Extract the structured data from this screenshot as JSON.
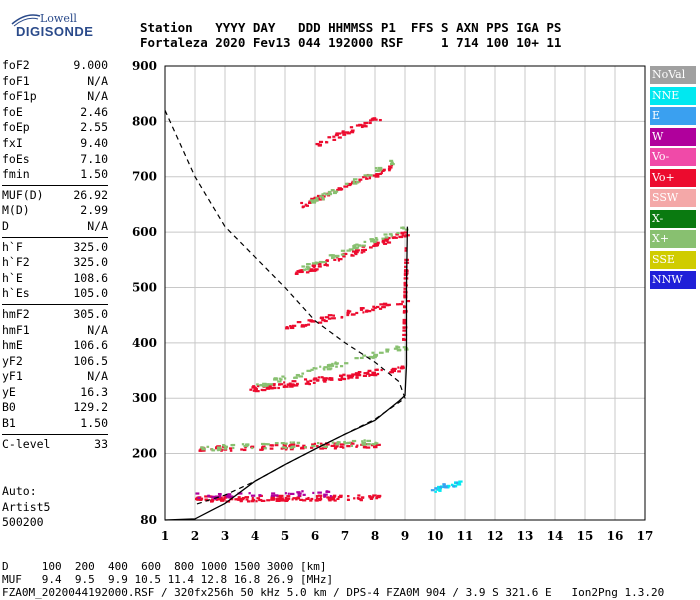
{
  "logo": {
    "line1": "Lowell",
    "line2": "DIGISONDE"
  },
  "header": {
    "labels": "Station   YYYY DAY   DDD HHMMSS P1  FFS S AXN PPS IGA PS",
    "values": "Fortaleza 2020 Fev13 044 192000 RSF     1 714 100 10+ 11"
  },
  "params": {
    "group1": [
      [
        "foF2",
        "9.000"
      ],
      [
        "foF1",
        "N/A"
      ],
      [
        "foF1p",
        "N/A"
      ],
      [
        "foE",
        "2.46"
      ],
      [
        "foEp",
        "2.55"
      ],
      [
        "fxI",
        "9.40"
      ],
      [
        "foEs",
        "7.10"
      ],
      [
        "fmin",
        "1.50"
      ]
    ],
    "group2": [
      [
        "MUF(D)",
        "26.92"
      ],
      [
        "M(D)",
        "2.99"
      ],
      [
        "D",
        "N/A"
      ]
    ],
    "group3": [
      [
        "h`F",
        "325.0"
      ],
      [
        "h`F2",
        "325.0"
      ],
      [
        "h`E",
        "108.6"
      ],
      [
        "h`Es",
        "105.0"
      ]
    ],
    "group4": [
      [
        "hmF2",
        "305.0"
      ],
      [
        "hmF1",
        "N/A"
      ],
      [
        "hmE",
        "106.6"
      ],
      [
        "yF2",
        "106.5"
      ],
      [
        "yF1",
        "N/A"
      ],
      [
        "yE",
        "16.3"
      ],
      [
        "B0",
        "129.2"
      ],
      [
        "B1",
        "1.50"
      ]
    ],
    "group5": [
      [
        "C-level",
        "33"
      ]
    ]
  },
  "auto": [
    "Auto:",
    "Artist5",
    "500200"
  ],
  "legend": [
    {
      "label": "NoVal",
      "color": "#a0a0a0"
    },
    {
      "label": "NNE",
      "color": "#00e8f0"
    },
    {
      "label": "E",
      "color": "#3aa0f0"
    },
    {
      "label": "W",
      "color": "#b0009c"
    },
    {
      "label": "Vo-",
      "color": "#f04aa8"
    },
    {
      "label": "Vo+",
      "color": "#ec0b2e"
    },
    {
      "label": "SSW",
      "color": "#f4a8a8"
    },
    {
      "label": "X-",
      "color": "#0a7a10"
    },
    {
      "label": "X+",
      "color": "#88c070"
    },
    {
      "label": "SSE",
      "color": "#d0cc00"
    },
    {
      "label": "NNW",
      "color": "#2020d8"
    }
  ],
  "footer": [
    "D     100  200  400  600  800 1000 1500 3000 [km]",
    "MUF   9.4  9.5  9.9 10.5 11.4 12.8 16.8 26.9 [MHz]",
    "FZA0M_2020044192000.RSF / 320fx256h 50 kHz 5.0 km / DPS-4 FZA0M 904 / 3.9 S 321.6 E   Ion2Png 1.3.20"
  ],
  "chart_data": {
    "type": "scatter",
    "xlim": [
      1,
      17
    ],
    "ylim": [
      80,
      900
    ],
    "xticks": [
      "1",
      "2",
      "3",
      "4",
      "5",
      "6",
      "7",
      "8",
      "9",
      "10",
      "11",
      "12",
      "13",
      "14",
      "15",
      "16",
      "17"
    ],
    "yticks": [
      "80",
      "200",
      "300",
      "400",
      "500",
      "600",
      "700",
      "800",
      "900"
    ],
    "grid": true,
    "traces": [
      {
        "x0": 2.0,
        "x1": 8.1,
        "y0": 120,
        "y1": 122,
        "color": "#ec0b2e",
        "n": 140
      },
      {
        "x0": 2.0,
        "x1": 6.5,
        "y0": 125,
        "y1": 130,
        "color": "#b0009c",
        "n": 40
      },
      {
        "x0": 2.1,
        "x1": 8.1,
        "y0": 210,
        "y1": 218,
        "color": "#ec0b2e",
        "n": 90
      },
      {
        "x0": 2.1,
        "x1": 8.1,
        "y0": 212,
        "y1": 222,
        "color": "#88c070",
        "n": 60
      },
      {
        "x0": 3.8,
        "x1": 8.9,
        "y0": 318,
        "y1": 355,
        "color": "#ec0b2e",
        "n": 120
      },
      {
        "x0": 4.0,
        "x1": 9.0,
        "y0": 325,
        "y1": 395,
        "color": "#88c070",
        "n": 70
      },
      {
        "x0": 5.0,
        "x1": 9.1,
        "y0": 430,
        "y1": 480,
        "color": "#ec0b2e",
        "n": 60
      },
      {
        "x0": 5.3,
        "x1": 9.0,
        "y0": 525,
        "y1": 600,
        "color": "#ec0b2e",
        "n": 80
      },
      {
        "x0": 5.5,
        "x1": 9.0,
        "y0": 535,
        "y1": 610,
        "color": "#88c070",
        "n": 50
      },
      {
        "x0": 5.5,
        "x1": 8.6,
        "y0": 650,
        "y1": 720,
        "color": "#ec0b2e",
        "n": 60
      },
      {
        "x0": 5.8,
        "x1": 8.6,
        "y0": 655,
        "y1": 730,
        "color": "#88c070",
        "n": 40
      },
      {
        "x0": 6.0,
        "x1": 8.2,
        "y0": 760,
        "y1": 810,
        "color": "#ec0b2e",
        "n": 40
      },
      {
        "x0": 8.9,
        "x1": 9.0,
        "y0": 400,
        "y1": 600,
        "color": "#ec0b2e",
        "n": 40
      },
      {
        "x0": 9.9,
        "x1": 10.8,
        "y0": 135,
        "y1": 150,
        "color": "#00e8f0",
        "n": 25
      },
      {
        "x0": 9.8,
        "x1": 10.7,
        "y0": 140,
        "y1": 145,
        "color": "#3aa0f0",
        "n": 10
      }
    ],
    "profile_solid": [
      [
        1,
        80
      ],
      [
        2,
        82
      ],
      [
        3,
        110
      ],
      [
        4,
        150
      ],
      [
        5,
        180
      ],
      [
        6,
        208
      ],
      [
        7,
        235
      ],
      [
        8,
        260
      ],
      [
        8.8,
        295
      ],
      [
        9.0,
        305
      ],
      [
        9.05,
        360
      ],
      [
        9.05,
        500
      ],
      [
        9.08,
        610
      ]
    ],
    "profile_dashed": [
      [
        1,
        820
      ],
      [
        2,
        700
      ],
      [
        3,
        610
      ],
      [
        4,
        555
      ],
      [
        5,
        500
      ],
      [
        6,
        440
      ],
      [
        7,
        400
      ],
      [
        8,
        365
      ],
      [
        8.8,
        330
      ],
      [
        9.0,
        300
      ],
      [
        8.0,
        262
      ],
      [
        7.0,
        235
      ],
      [
        6.0,
        208
      ],
      [
        5.0,
        180
      ],
      [
        4.0,
        150
      ],
      [
        3.0,
        125
      ],
      [
        2.0,
        108
      ]
    ]
  }
}
